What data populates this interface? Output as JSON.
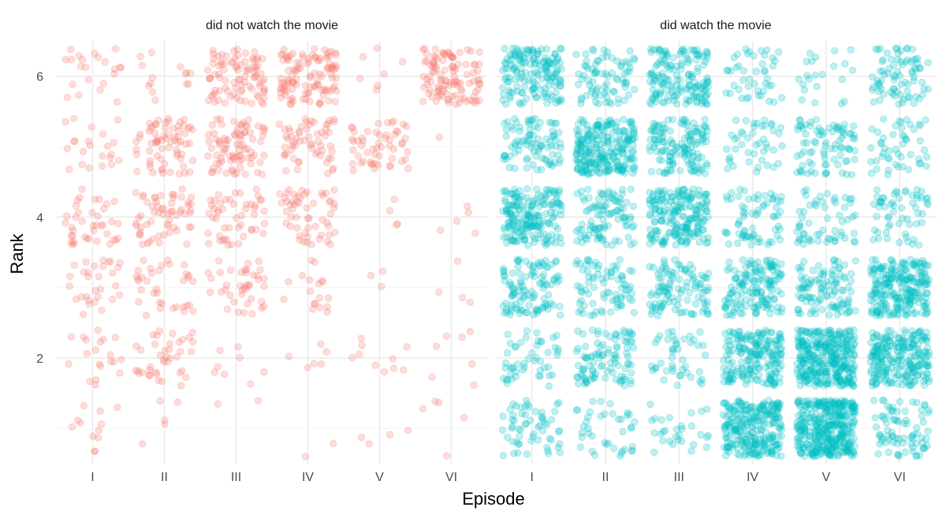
{
  "chart_data": {
    "type": "scatter",
    "subtype": "jittered strip plot, faceted",
    "xlabel": "Episode",
    "ylabel": "Rank",
    "x_categories": [
      "I",
      "II",
      "III",
      "IV",
      "V",
      "VI"
    ],
    "y_ticks": [
      2,
      4,
      6
    ],
    "ylim": [
      0.5,
      6.5
    ],
    "jitter": {
      "x": 0.4,
      "y": 0.4
    },
    "grid": true,
    "legend": "none",
    "point_opacity": 0.25,
    "facets": [
      {
        "label": "did not watch the movie",
        "color": "#F8766D",
        "counts_by_episode": {
          "I": {
            "1": 12,
            "2": 20,
            "3": 30,
            "4": 40,
            "5": 22,
            "6": 22
          },
          "II": {
            "1": 5,
            "2": 40,
            "3": 35,
            "4": 60,
            "5": 70,
            "6": 14
          },
          "III": {
            "1": 2,
            "2": 8,
            "3": 40,
            "4": 50,
            "5": 85,
            "6": 90
          },
          "IV": {
            "1": 2,
            "2": 6,
            "3": 18,
            "4": 55,
            "5": 60,
            "6": 110
          },
          "V": {
            "1": 4,
            "2": 10,
            "3": 3,
            "4": 4,
            "5": 55,
            "6": 7
          },
          "VI": {
            "1": 5,
            "2": 7,
            "3": 4,
            "4": 5,
            "5": 1,
            "6": 110
          }
        }
      },
      {
        "label": "did watch the movie",
        "color": "#00BFC4",
        "counts_by_episode": {
          "I": {
            "1": 60,
            "2": 50,
            "3": 110,
            "4": 190,
            "5": 90,
            "6": 160
          },
          "II": {
            "1": 40,
            "2": 100,
            "3": 80,
            "4": 100,
            "5": 240,
            "6": 80
          },
          "III": {
            "1": 30,
            "2": 45,
            "3": 110,
            "4": 200,
            "5": 140,
            "6": 160
          },
          "IV": {
            "1": 260,
            "2": 200,
            "3": 150,
            "4": 70,
            "5": 45,
            "6": 45
          },
          "V": {
            "1": 380,
            "2": 340,
            "3": 110,
            "4": 60,
            "5": 85,
            "6": 22
          },
          "VI": {
            "1": 80,
            "2": 240,
            "3": 240,
            "4": 60,
            "5": 50,
            "6": 80
          }
        }
      }
    ]
  }
}
